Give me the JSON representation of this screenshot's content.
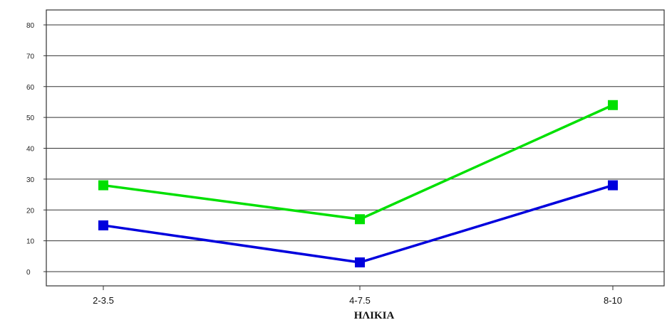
{
  "chart_data": {
    "type": "line",
    "title": "",
    "xlabel": "ΗΛΙΚΙΑ",
    "ylabel": "",
    "categories": [
      "2-3.5",
      "4-7.5",
      "8-10"
    ],
    "y_ticks": [
      0,
      10,
      20,
      30,
      40,
      50,
      60,
      70,
      80
    ],
    "ylim": [
      -5,
      88
    ],
    "grid": true,
    "legend": "none",
    "series": [
      {
        "color": "#00e000",
        "marker": "square",
        "values": [
          28,
          17,
          54
        ]
      },
      {
        "color": "#0000dd",
        "marker": "square",
        "values": [
          15,
          3,
          28
        ]
      }
    ]
  }
}
